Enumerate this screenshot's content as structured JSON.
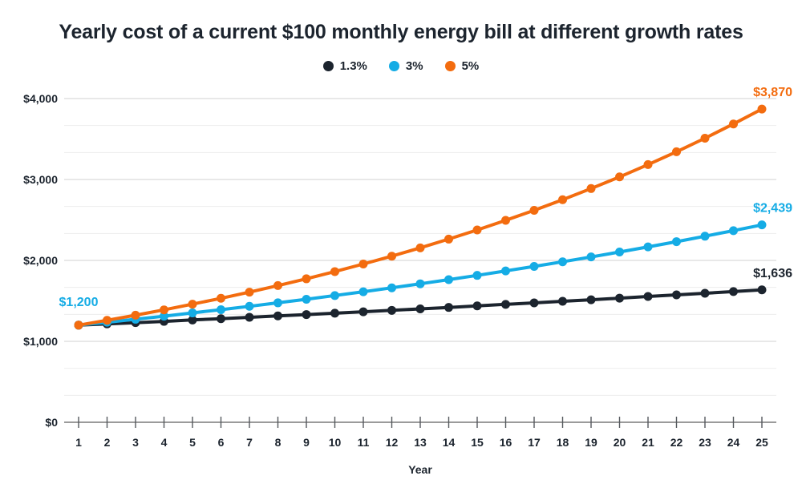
{
  "chart_data": {
    "type": "line",
    "title": "Yearly cost of a current $100 monthly energy bill at different growth rates",
    "xlabel": "Year",
    "ylabel": "",
    "x": [
      1,
      2,
      3,
      4,
      5,
      6,
      7,
      8,
      9,
      10,
      11,
      12,
      13,
      14,
      15,
      16,
      17,
      18,
      19,
      20,
      21,
      22,
      23,
      24,
      25
    ],
    "ylim": [
      0,
      4000
    ],
    "ytick_labels": [
      "$0",
      "$1,000",
      "$2,000",
      "$3,000",
      "$4,000"
    ],
    "ytick_values": [
      0,
      1000,
      2000,
      3000,
      4000
    ],
    "grid": "horizontal majors at $1,000 steps with two light minor lines between each",
    "legend_position": "top-center",
    "series": [
      {
        "name": "1.3%",
        "color": "#1c242e",
        "values": [
          1200,
          1216,
          1231,
          1247,
          1264,
          1280,
          1297,
          1314,
          1331,
          1348,
          1365,
          1383,
          1401,
          1419,
          1438,
          1457,
          1475,
          1495,
          1514,
          1534,
          1554,
          1574,
          1594,
          1615,
          1636
        ]
      },
      {
        "name": "3%",
        "color": "#15ace5",
        "values": [
          1200,
          1236,
          1273,
          1311,
          1351,
          1391,
          1433,
          1476,
          1520,
          1566,
          1613,
          1661,
          1711,
          1762,
          1815,
          1870,
          1926,
          1983,
          2043,
          2104,
          2167,
          2232,
          2299,
          2368,
          2439
        ]
      },
      {
        "name": "5%",
        "color": "#f36c0f",
        "values": [
          1200,
          1260,
          1323,
          1389,
          1459,
          1532,
          1608,
          1689,
          1773,
          1862,
          1955,
          2052,
          2155,
          2263,
          2376,
          2495,
          2619,
          2750,
          2888,
          3032,
          3184,
          3343,
          3510,
          3686,
          3870
        ]
      }
    ],
    "annotations": [
      {
        "text": "$1,200",
        "series": "3%",
        "position": "start"
      },
      {
        "text": "$1,636",
        "series": "1.3%",
        "position": "end"
      },
      {
        "text": "$2,439",
        "series": "3%",
        "position": "end"
      },
      {
        "text": "$3,870",
        "series": "5%",
        "position": "end"
      }
    ],
    "colors": {
      "text": "#1c242e",
      "grid_major": "#d9d9d9",
      "grid_minor": "#ededed",
      "axis_line": "#9b9b9b",
      "tick": "#55595e",
      "background": "#ffffff"
    }
  }
}
